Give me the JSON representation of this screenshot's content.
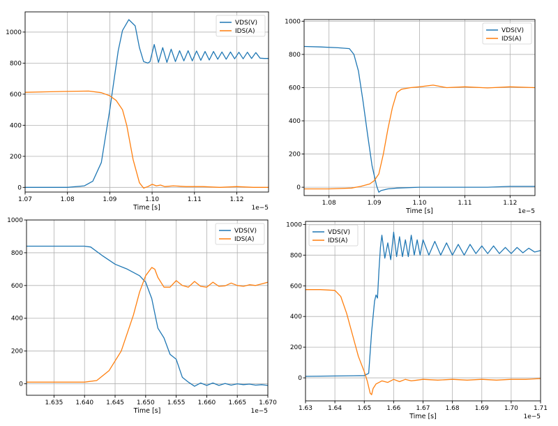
{
  "colors": {
    "vds": "#1f77b4",
    "ids": "#ff7f0e"
  },
  "chart_data": [
    {
      "type": "line",
      "title": "",
      "xlabel": "Time [s]",
      "ylabel": "",
      "x_offset_label": "1e−5",
      "xlim": [
        1.07,
        1.1275
      ],
      "ylim": [
        -30,
        1130
      ],
      "xticks": [
        1.07,
        1.08,
        1.09,
        1.1,
        1.11,
        1.12
      ],
      "xtick_labels": [
        "1.07",
        "1.08",
        "1.09",
        "1.10",
        "1.11",
        "1.12"
      ],
      "yticks": [
        0,
        200,
        400,
        600,
        800,
        1000
      ],
      "ytick_labels": [
        "0",
        "200",
        "400",
        "600",
        "800",
        "1000"
      ],
      "legend_position": "top-right",
      "series": [
        {
          "name": "VDS(V)",
          "color": "#1f77b4",
          "x": [
            1.07,
            1.08,
            1.084,
            1.086,
            1.088,
            1.09,
            1.092,
            1.093,
            1.0945,
            1.096,
            1.097,
            1.098,
            1.099,
            1.0995,
            1.1005,
            1.1015,
            1.1025,
            1.1035,
            1.1045,
            1.1055,
            1.1065,
            1.1075,
            1.1085,
            1.1095,
            1.1105,
            1.1115,
            1.1125,
            1.1135,
            1.1145,
            1.1155,
            1.1165,
            1.1175,
            1.1185,
            1.1195,
            1.1205,
            1.1215,
            1.1225,
            1.1235,
            1.1245,
            1.1255,
            1.1265,
            1.1275
          ],
          "values": [
            0,
            0,
            10,
            40,
            160,
            500,
            880,
            1010,
            1080,
            1040,
            900,
            810,
            800,
            810,
            920,
            805,
            900,
            805,
            890,
            810,
            880,
            815,
            880,
            815,
            878,
            818,
            875,
            820,
            875,
            825,
            872,
            825,
            872,
            828,
            870,
            828,
            870,
            830,
            868,
            832,
            830,
            830
          ]
        },
        {
          "name": "IDS(A)",
          "color": "#ff7f0e",
          "x": [
            1.07,
            1.075,
            1.08,
            1.085,
            1.088,
            1.09,
            1.0915,
            1.093,
            1.094,
            1.0955,
            1.097,
            1.098,
            1.099,
            1.1,
            1.101,
            1.102,
            1.103,
            1.105,
            1.108,
            1.112,
            1.116,
            1.12,
            1.124,
            1.1275
          ],
          "values": [
            612,
            615,
            618,
            620,
            610,
            590,
            560,
            500,
            400,
            180,
            30,
            -5,
            5,
            20,
            10,
            15,
            5,
            10,
            5,
            5,
            0,
            5,
            0,
            0
          ]
        }
      ]
    },
    {
      "type": "line",
      "title": "",
      "xlabel": "Time [s]",
      "ylabel": "",
      "x_offset_label": "1e−5",
      "xlim": [
        1.0745,
        1.1255
      ],
      "ylim": [
        -50,
        1010
      ],
      "xticks": [
        1.08,
        1.09,
        1.1,
        1.11,
        1.12
      ],
      "xtick_labels": [
        "1.08",
        "1.09",
        "1.10",
        "1.11",
        "1.12"
      ],
      "yticks": [
        0,
        200,
        400,
        600,
        800,
        1000
      ],
      "ytick_labels": [
        "0",
        "200",
        "400",
        "600",
        "800",
        "1000"
      ],
      "legend_position": "top-right",
      "series": [
        {
          "name": "VDS(V)",
          "color": "#1f77b4",
          "x": [
            1.0745,
            1.078,
            1.082,
            1.0845,
            1.0855,
            1.0865,
            1.0875,
            1.0885,
            1.0895,
            1.0905,
            1.091,
            1.0915,
            1.093,
            1.095,
            1.1,
            1.105,
            1.11,
            1.115,
            1.12,
            1.1255
          ],
          "values": [
            848,
            845,
            840,
            835,
            800,
            700,
            520,
            320,
            130,
            10,
            -30,
            -20,
            -10,
            -5,
            0,
            0,
            0,
            0,
            5,
            5
          ]
        },
        {
          "name": "IDS(A)",
          "color": "#ff7f0e",
          "x": [
            1.0745,
            1.08,
            1.085,
            1.087,
            1.089,
            1.09,
            1.091,
            1.092,
            1.093,
            1.094,
            1.095,
            1.096,
            1.098,
            1.1,
            1.103,
            1.106,
            1.11,
            1.115,
            1.12,
            1.1255
          ],
          "values": [
            -10,
            -10,
            -5,
            5,
            20,
            40,
            80,
            200,
            350,
            480,
            570,
            590,
            600,
            605,
            615,
            600,
            605,
            598,
            605,
            600
          ]
        }
      ]
    },
    {
      "type": "line",
      "title": "",
      "xlabel": "Time [s]",
      "ylabel": "",
      "x_offset_label": "1e−5",
      "xlim": [
        1.6305,
        1.67
      ],
      "ylim": [
        -70,
        1000
      ],
      "xticks": [
        1.635,
        1.64,
        1.645,
        1.65,
        1.655,
        1.66,
        1.665,
        1.67
      ],
      "xtick_labels": [
        "1.635",
        "1.640",
        "1.645",
        "1.650",
        "1.655",
        "1.660",
        "1.665",
        "1.670"
      ],
      "yticks": [
        0,
        200,
        400,
        600,
        800,
        1000
      ],
      "ytick_labels": [
        "0",
        "200",
        "400",
        "600",
        "800",
        "1000"
      ],
      "legend_position": "top-right",
      "series": [
        {
          "name": "VDS(V)",
          "color": "#1f77b4",
          "x": [
            1.6305,
            1.635,
            1.64,
            1.641,
            1.643,
            1.645,
            1.647,
            1.649,
            1.65,
            1.651,
            1.652,
            1.653,
            1.654,
            1.655,
            1.656,
            1.657,
            1.658,
            1.659,
            1.66,
            1.661,
            1.662,
            1.663,
            1.664,
            1.665,
            1.666,
            1.667,
            1.668,
            1.669,
            1.67
          ],
          "values": [
            840,
            840,
            840,
            835,
            780,
            730,
            700,
            660,
            620,
            520,
            340,
            280,
            180,
            150,
            40,
            10,
            -15,
            5,
            -10,
            5,
            -10,
            2,
            -8,
            0,
            -5,
            -2,
            -8,
            -5,
            -10
          ]
        },
        {
          "name": "IDS(A)",
          "color": "#ff7f0e",
          "x": [
            1.6305,
            1.64,
            1.642,
            1.644,
            1.646,
            1.648,
            1.649,
            1.65,
            1.651,
            1.6515,
            1.652,
            1.653,
            1.654,
            1.655,
            1.656,
            1.657,
            1.658,
            1.659,
            1.66,
            1.661,
            1.662,
            1.663,
            1.664,
            1.665,
            1.666,
            1.667,
            1.668,
            1.669,
            1.67
          ],
          "values": [
            10,
            10,
            20,
            80,
            200,
            420,
            560,
            660,
            710,
            700,
            650,
            590,
            590,
            630,
            600,
            590,
            625,
            595,
            590,
            620,
            595,
            598,
            615,
            600,
            595,
            605,
            600,
            610,
            620
          ]
        }
      ]
    },
    {
      "type": "line",
      "title": "",
      "xlabel": "Time [s]",
      "ylabel": "",
      "x_offset_label": "1e−5",
      "xlim": [
        1.63,
        1.71
      ],
      "ylim": [
        -150,
        1020
      ],
      "xticks": [
        1.63,
        1.64,
        1.65,
        1.66,
        1.67,
        1.68,
        1.69,
        1.7,
        1.71
      ],
      "xtick_labels": [
        "1.63",
        "1.64",
        "1.65",
        "1.66",
        "1.67",
        "1.68",
        "1.69",
        "1.70",
        "1.71"
      ],
      "yticks": [
        0,
        200,
        400,
        600,
        800,
        1000
      ],
      "ytick_labels": [
        "0",
        "200",
        "400",
        "600",
        "800",
        "1000"
      ],
      "legend_position": "top-left",
      "series": [
        {
          "name": "VDS(V)",
          "color": "#1f77b4",
          "x": [
            1.63,
            1.64,
            1.65,
            1.6515,
            1.6525,
            1.6535,
            1.654,
            1.6545,
            1.655,
            1.6555,
            1.656,
            1.657,
            1.658,
            1.659,
            1.66,
            1.661,
            1.662,
            1.663,
            1.664,
            1.665,
            1.666,
            1.667,
            1.668,
            1.669,
            1.67,
            1.672,
            1.674,
            1.676,
            1.678,
            1.68,
            1.682,
            1.684,
            1.686,
            1.688,
            1.69,
            1.692,
            1.694,
            1.696,
            1.698,
            1.7,
            1.702,
            1.704,
            1.706,
            1.708,
            1.71
          ],
          "values": [
            10,
            12,
            15,
            30,
            300,
            500,
            540,
            520,
            700,
            850,
            930,
            780,
            880,
            770,
            950,
            790,
            920,
            790,
            900,
            790,
            930,
            800,
            900,
            800,
            900,
            800,
            890,
            800,
            880,
            800,
            870,
            800,
            870,
            810,
            860,
            810,
            860,
            810,
            850,
            810,
            850,
            815,
            845,
            820,
            830
          ]
        },
        {
          "name": "IDS(A)",
          "color": "#ff7f0e",
          "x": [
            1.63,
            1.635,
            1.64,
            1.642,
            1.644,
            1.646,
            1.648,
            1.65,
            1.651,
            1.652,
            1.6525,
            1.653,
            1.654,
            1.656,
            1.658,
            1.66,
            1.662,
            1.664,
            1.666,
            1.668,
            1.67,
            1.675,
            1.68,
            1.685,
            1.69,
            1.695,
            1.7,
            1.705,
            1.71
          ],
          "values": [
            575,
            575,
            570,
            530,
            420,
            280,
            140,
            40,
            -20,
            -100,
            -110,
            -70,
            -40,
            -20,
            -30,
            -10,
            -25,
            -10,
            -20,
            -15,
            -10,
            -15,
            -10,
            -15,
            -10,
            -15,
            -10,
            -10,
            -5
          ]
        }
      ]
    }
  ]
}
